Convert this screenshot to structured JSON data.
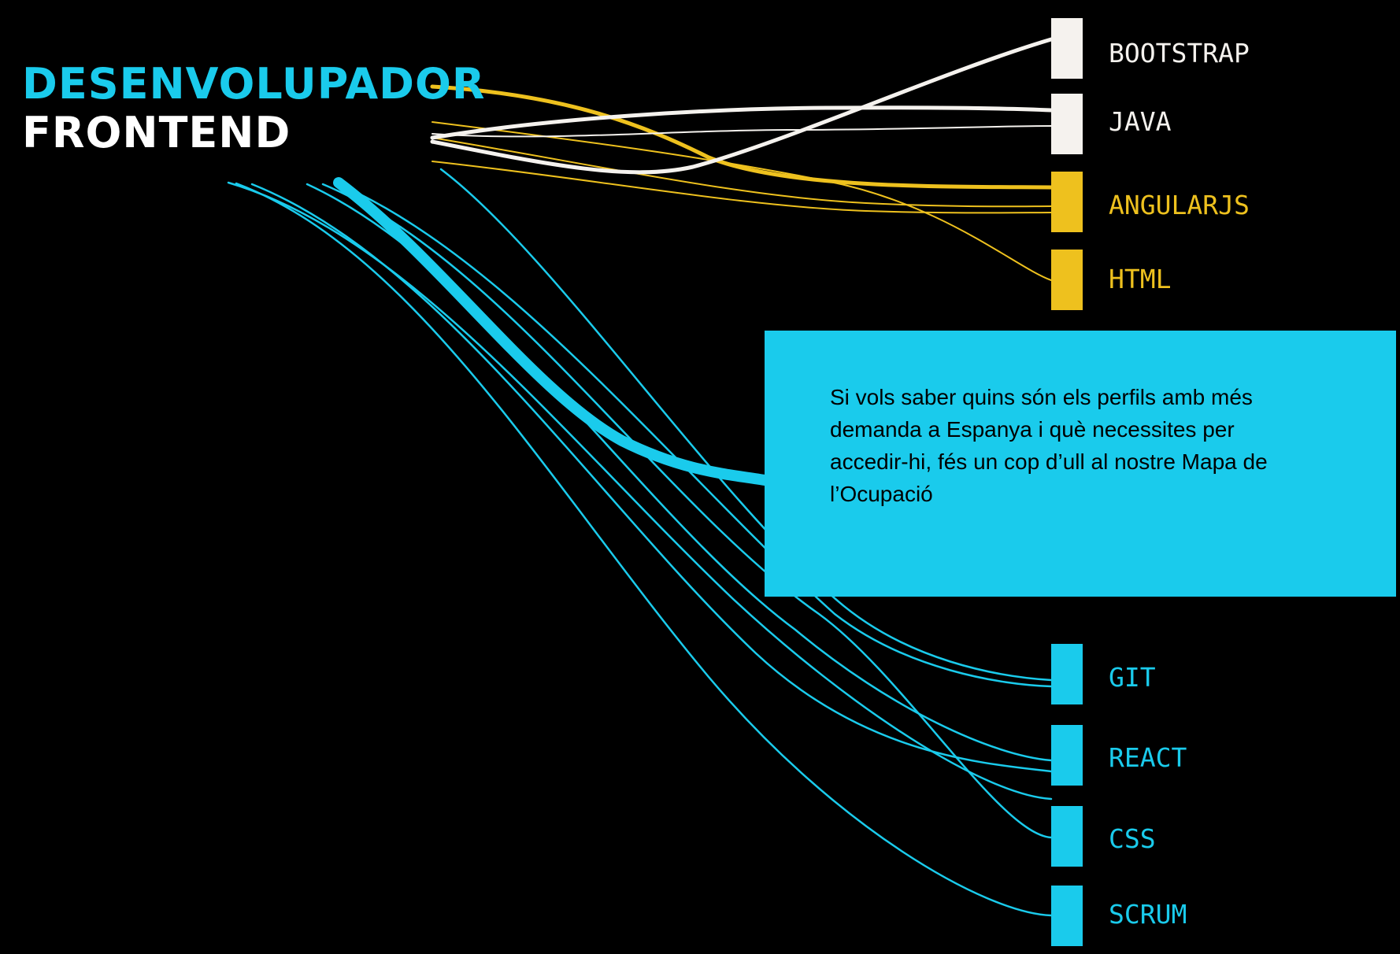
{
  "title": {
    "line1": "DESENVOLUPADOR",
    "line2": "FRONTEND"
  },
  "colors": {
    "background": "#000000",
    "cyan": "#1ACBEC",
    "white": "#F5F2EE",
    "yellow": "#EEC11E",
    "title_line2": "#FFFFFF",
    "info_box": "#1ACBEC"
  },
  "nodes": [
    {
      "id": "bootstrap",
      "label": "BOOTSTRAP",
      "group": "white"
    },
    {
      "id": "java",
      "label": "JAVA",
      "group": "white"
    },
    {
      "id": "angularjs",
      "label": "ANGULARJS",
      "group": "yellow"
    },
    {
      "id": "html",
      "label": "HTML",
      "group": "yellow"
    },
    {
      "id": "git",
      "label": "GIT",
      "group": "cyan"
    },
    {
      "id": "react",
      "label": "REACT",
      "group": "cyan"
    },
    {
      "id": "css",
      "label": "CSS",
      "group": "cyan"
    },
    {
      "id": "scrum",
      "label": "SCRUM",
      "group": "cyan"
    }
  ],
  "info_box": {
    "text": "Si vols saber quins són els perfils amb més demanda a Espanya i què necessites per accedir-hi, fés un cop d’ull al nostre Mapa de l’Ocupació"
  }
}
